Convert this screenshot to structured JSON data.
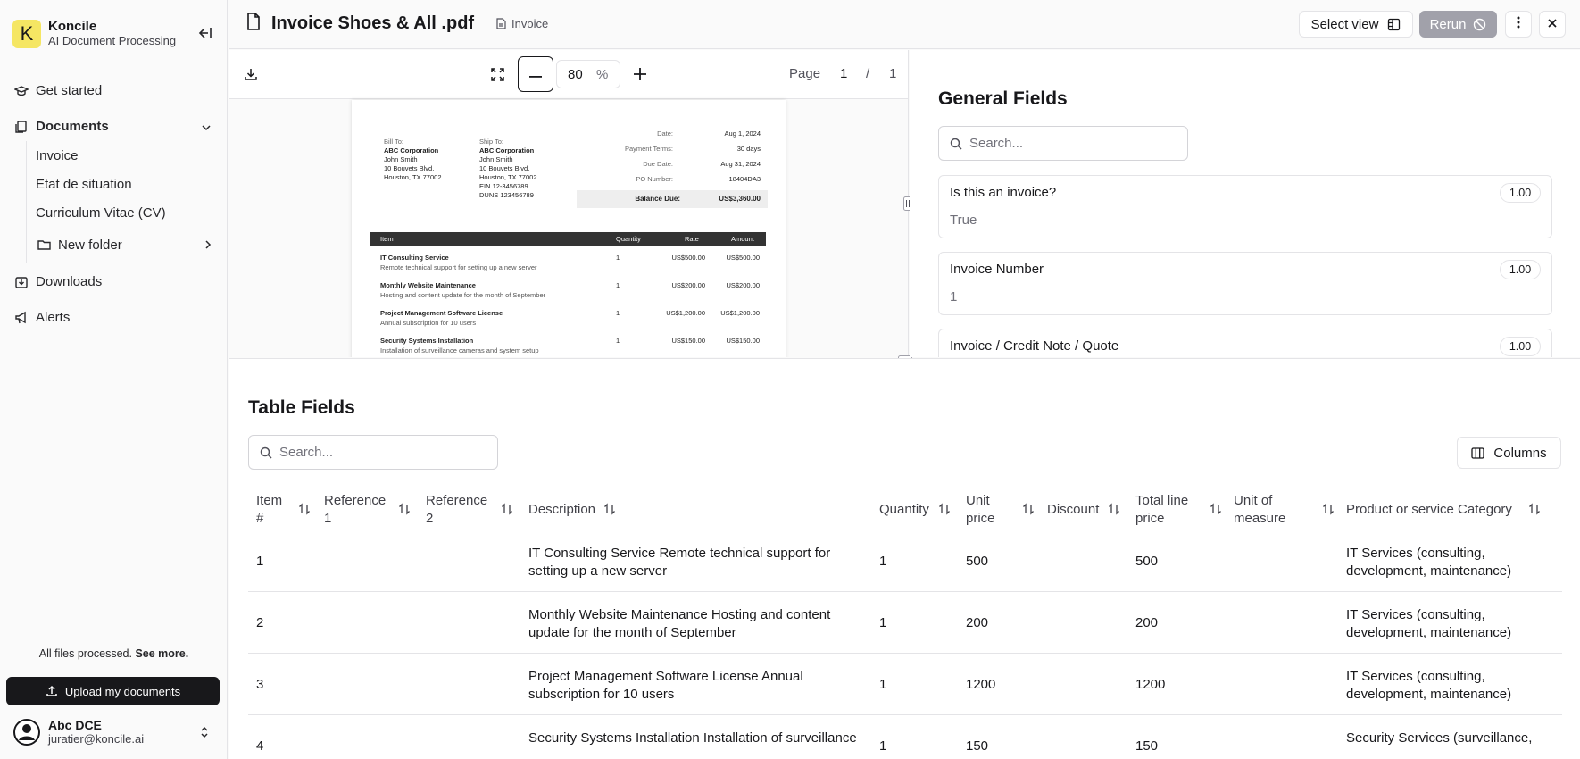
{
  "brand": {
    "logo_letter": "K",
    "name": "Koncile",
    "subtitle": "AI Document Processing",
    "logo_color": "#f5e663"
  },
  "nav": {
    "get_started": "Get started",
    "documents": "Documents",
    "doc_items": [
      "Invoice",
      "Etat de situation",
      "Curriculum Vitae (CV)"
    ],
    "new_folder": "New folder",
    "downloads": "Downloads",
    "alerts": "Alerts"
  },
  "status": {
    "text": "All files processed.",
    "link": "See more."
  },
  "upload_label": "Upload my documents",
  "user": {
    "name": "Abc DCE",
    "email": "juratier@koncile.ai"
  },
  "header": {
    "title": "Invoice Shoes & All .pdf",
    "tag": "Invoice",
    "select_view": "Select view",
    "rerun": "Rerun"
  },
  "viewer": {
    "zoom": "80",
    "zoom_unit": "%",
    "page_label": "Page",
    "page_current": "1",
    "page_sep": "/",
    "page_total": "1"
  },
  "invoice_preview": {
    "bill_to_label": "Bill To:",
    "bill_to": [
      "ABC Corporation",
      "John Smith",
      "10 Bouvets Blvd.",
      "Houston, TX 77002"
    ],
    "ship_to_label": "Ship To:",
    "ship_to": [
      "ABC Corporation",
      "John Smith",
      "10 Bouvets Blvd.",
      "Houston, TX 77002",
      "EIN 12-3456789",
      "DUNS 123456789"
    ],
    "meta": [
      {
        "k": "Date:",
        "v": "Aug 1, 2024"
      },
      {
        "k": "Payment Terms:",
        "v": "30 days"
      },
      {
        "k": "Due Date:",
        "v": "Aug 31, 2024"
      },
      {
        "k": "PO Number:",
        "v": "18404DA3"
      }
    ],
    "balance_label": "Balance Due:",
    "balance_value": "US$3,360.00",
    "cols": [
      "Item",
      "Quantity",
      "Rate",
      "Amount"
    ],
    "lines": [
      {
        "name": "IT Consulting Service",
        "desc": "Remote technical support for setting up a new server",
        "qty": "1",
        "rate": "US$500.00",
        "amount": "US$500.00"
      },
      {
        "name": "Monthly Website Maintenance",
        "desc": "Hosting and content update for the month of September",
        "qty": "1",
        "rate": "US$200.00",
        "amount": "US$200.00"
      },
      {
        "name": "Project Management Software License",
        "desc": "Annual subscription for 10 users",
        "qty": "1",
        "rate": "US$1,200.00",
        "amount": "US$1,200.00"
      },
      {
        "name": "Security Systems Installation",
        "desc": "Installation of surveillance cameras and system setup",
        "qty": "1",
        "rate": "US$150.00",
        "amount": "US$150.00"
      }
    ]
  },
  "general": {
    "title": "General Fields",
    "search_placeholder": "Search...",
    "fields": [
      {
        "label": "Is this an invoice?",
        "value": "True",
        "score": "1.00"
      },
      {
        "label": "Invoice Number",
        "value": "1",
        "score": "1.00"
      },
      {
        "label": "Invoice / Credit Note / Quote",
        "value": "",
        "score": "1.00"
      }
    ]
  },
  "table": {
    "title": "Table Fields",
    "search_placeholder": "Search...",
    "columns_label": "Columns",
    "headers": [
      "Item #",
      "Reference 1",
      "Reference 2",
      "Description",
      "Quantity",
      "Unit price",
      "Discount",
      "Total line price",
      "Unit of measure",
      "Product or service Category"
    ],
    "rows": [
      {
        "item": "1",
        "description": "IT Consulting Service Remote technical support for setting up a new server",
        "quantity": "1",
        "unit_price": "500",
        "total": "500",
        "category": "IT Services (consulting, development, maintenance)"
      },
      {
        "item": "2",
        "description": "Monthly Website Maintenance Hosting and content update for the month of September",
        "quantity": "1",
        "unit_price": "200",
        "total": "200",
        "category": "IT Services (consulting, development, maintenance)"
      },
      {
        "item": "3",
        "description": "Project Management Software License Annual subscription for 10 users",
        "quantity": "1",
        "unit_price": "1200",
        "total": "1200",
        "category": "IT Services (consulting, development, maintenance)"
      },
      {
        "item": "4",
        "description": "Security Systems Installation Installation of surveillance",
        "quantity": "1",
        "unit_price": "150",
        "total": "150",
        "category": "Security Services (surveillance,"
      }
    ]
  }
}
